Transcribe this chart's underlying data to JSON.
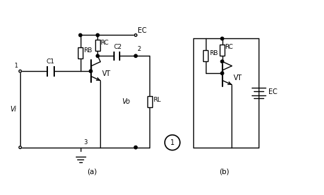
{
  "bg_color": "#ffffff",
  "line_color": "#000000",
  "lw": 1.0,
  "fig_w": 4.66,
  "fig_h": 2.8,
  "label_a": "(a)",
  "label_b": "(b)",
  "circle_num": "1"
}
